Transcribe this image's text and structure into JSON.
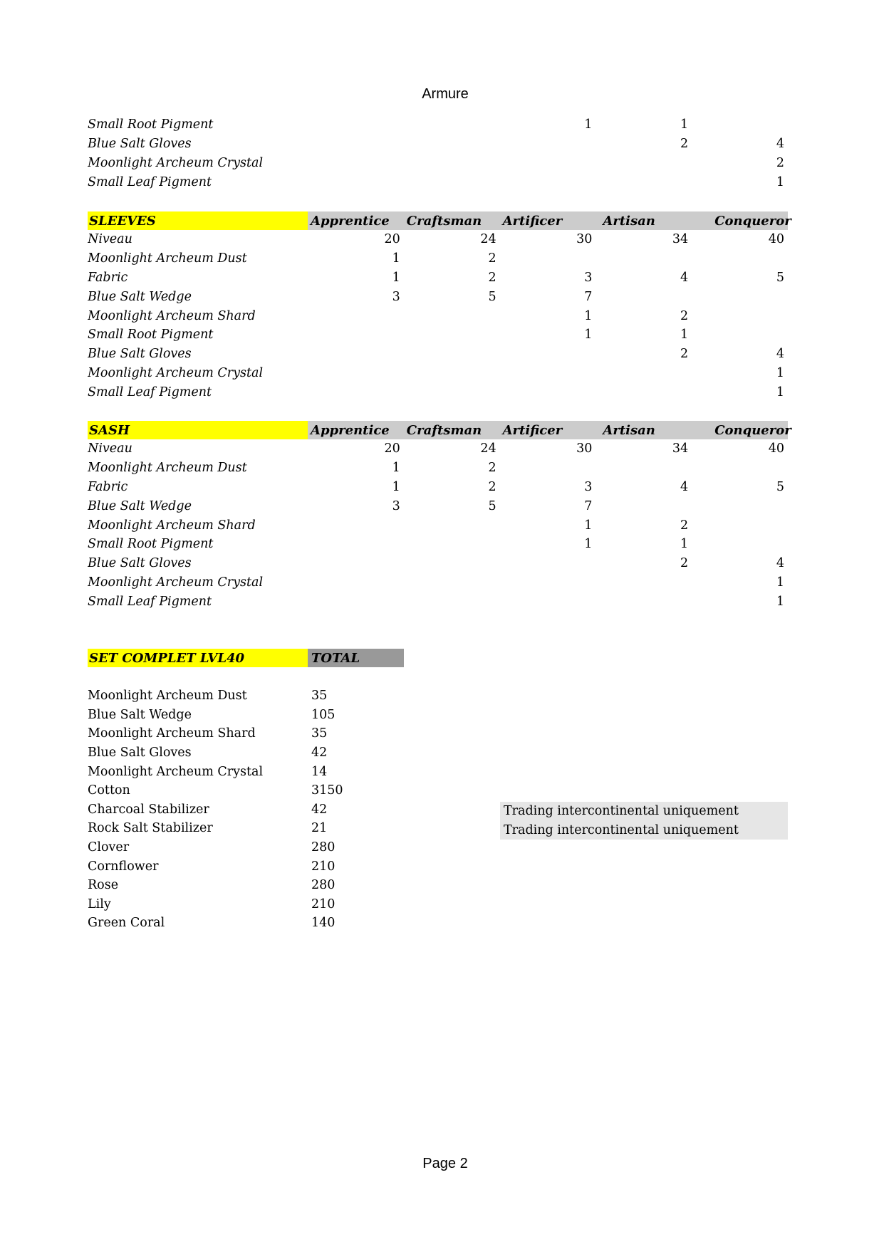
{
  "header": {
    "title": "Armure"
  },
  "footer": {
    "page_label": "Page 2"
  },
  "columns": [
    "Apprentice",
    "Craftsman",
    "Artificer",
    "Artisan",
    "Conqueror"
  ],
  "colors": {
    "section_highlight": "#ffff00",
    "header_gray": "#cccccc",
    "total_gray": "#999999",
    "note_bg": "#e6e6e6"
  },
  "continuation_rows": [
    [
      "Small Root Pigment",
      "",
      "",
      "1",
      "1",
      ""
    ],
    [
      "Blue Salt Gloves",
      "",
      "",
      "",
      "2",
      "4"
    ],
    [
      "Moonlight Archeum Crystal",
      "",
      "",
      "",
      "",
      "2"
    ],
    [
      "Small Leaf Pigment",
      "",
      "",
      "",
      "",
      "1"
    ]
  ],
  "sections": [
    {
      "name": "SLEEVES",
      "rows": [
        [
          "Niveau",
          "20",
          "24",
          "30",
          "34",
          "40"
        ],
        [
          "Moonlight Archeum Dust",
          "1",
          "2",
          "",
          "",
          ""
        ],
        [
          "Fabric",
          "1",
          "2",
          "3",
          "4",
          "5"
        ],
        [
          "Blue Salt Wedge",
          "3",
          "5",
          "7",
          "",
          ""
        ],
        [
          "Moonlight Archeum Shard",
          "",
          "",
          "1",
          "2",
          ""
        ],
        [
          "Small Root Pigment",
          "",
          "",
          "1",
          "1",
          ""
        ],
        [
          "Blue Salt Gloves",
          "",
          "",
          "",
          "2",
          "4"
        ],
        [
          "Moonlight Archeum Crystal",
          "",
          "",
          "",
          "",
          "1"
        ],
        [
          "Small Leaf Pigment",
          "",
          "",
          "",
          "",
          "1"
        ]
      ]
    },
    {
      "name": "SASH",
      "rows": [
        [
          "Niveau",
          "20",
          "24",
          "30",
          "34",
          "40"
        ],
        [
          "Moonlight Archeum Dust",
          "1",
          "2",
          "",
          "",
          ""
        ],
        [
          "Fabric",
          "1",
          "2",
          "3",
          "4",
          "5"
        ],
        [
          "Blue Salt Wedge",
          "3",
          "5",
          "7",
          "",
          ""
        ],
        [
          "Moonlight Archeum Shard",
          "",
          "",
          "1",
          "2",
          ""
        ],
        [
          "Small Root Pigment",
          "",
          "",
          "1",
          "1",
          ""
        ],
        [
          "Blue Salt Gloves",
          "",
          "",
          "",
          "2",
          "4"
        ],
        [
          "Moonlight Archeum Crystal",
          "",
          "",
          "",
          "",
          "1"
        ],
        [
          "Small Leaf Pigment",
          "",
          "",
          "",
          "",
          "1"
        ]
      ]
    }
  ],
  "set_total": {
    "title": "SET COMPLET LVL40",
    "total_label": "TOTAL",
    "rows": [
      [
        "Moonlight Archeum Dust",
        "35"
      ],
      [
        "Blue Salt Wedge",
        "105"
      ],
      [
        "Moonlight Archeum Shard",
        "35"
      ],
      [
        "Blue Salt Gloves",
        "42"
      ],
      [
        "Moonlight Archeum Crystal",
        "14"
      ],
      [
        "Cotton",
        "3150"
      ],
      [
        "Charcoal Stabilizer",
        "42"
      ],
      [
        "Rock Salt Stabilizer",
        "21"
      ],
      [
        "Clover",
        "280"
      ],
      [
        "Cornflower",
        "210"
      ],
      [
        "Rose",
        "280"
      ],
      [
        "Lily",
        "210"
      ],
      [
        "Green Coral",
        "140"
      ]
    ],
    "notes": [
      "Trading intercontinental uniquement",
      "Trading intercontinental uniquement"
    ]
  }
}
